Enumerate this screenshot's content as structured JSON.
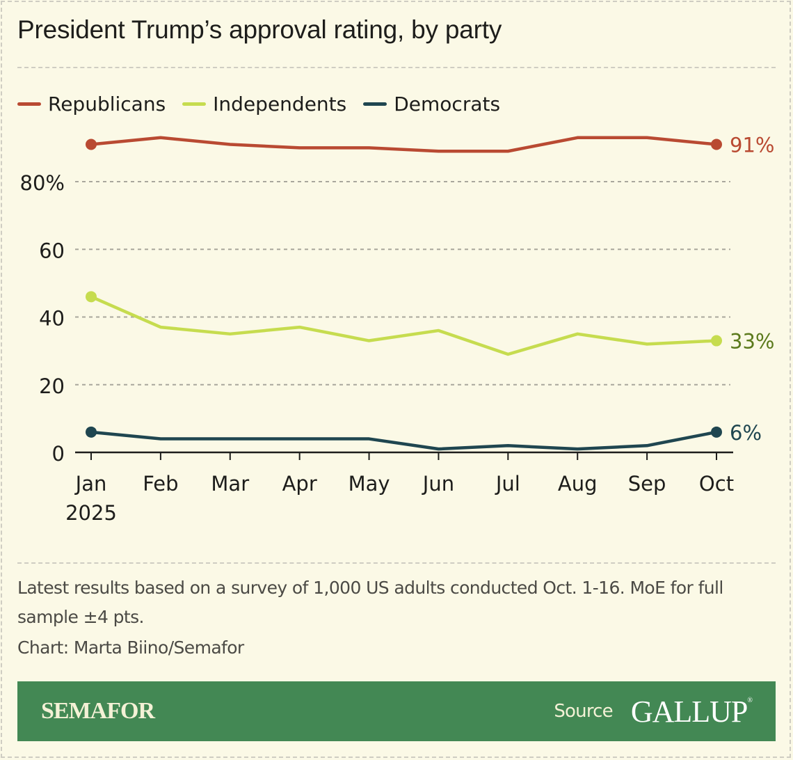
{
  "header": {
    "title": "President Trump’s approval rating, by party"
  },
  "legend": [
    {
      "label": "Republicans",
      "color": "#b94a32"
    },
    {
      "label": "Independents",
      "color": "#c6dc4f"
    },
    {
      "label": "Democrats",
      "color": "#1f4650"
    }
  ],
  "chart_data": {
    "type": "line",
    "title": "President Trump’s approval rating, by party",
    "xlabel": "",
    "ylabel": "",
    "categories": [
      "Jan",
      "Feb",
      "Mar",
      "Apr",
      "May",
      "Jun",
      "Jul",
      "Aug",
      "Sep",
      "Oct"
    ],
    "x_sublabel": {
      "Jan": "2025"
    },
    "ylim": [
      0,
      80
    ],
    "yticks": [
      0,
      20,
      40,
      60,
      80
    ],
    "ytick_labels": [
      "0",
      "20",
      "40",
      "60",
      "80%"
    ],
    "grid": true,
    "legend_position": "top-left",
    "series": [
      {
        "name": "Republicans",
        "color": "#b94a32",
        "label_color": "#b94a32",
        "end_label": "91%",
        "values": [
          91,
          93,
          91,
          90,
          90,
          89,
          89,
          93,
          93,
          91
        ]
      },
      {
        "name": "Independents",
        "color": "#c6dc4f",
        "label_color": "#5b7a1c",
        "end_label": "33%",
        "values": [
          46,
          37,
          35,
          37,
          33,
          36,
          29,
          35,
          32,
          33
        ]
      },
      {
        "name": "Democrats",
        "color": "#1f4650",
        "label_color": "#1f4650",
        "end_label": "6%",
        "values": [
          6,
          4,
          4,
          4,
          4,
          1,
          2,
          1,
          2,
          6
        ]
      }
    ]
  },
  "footer": {
    "note": "Latest results based on a survey of 1,000 US adults conducted Oct. 1-16. MoE for full sample ±4 pts.",
    "credit": "Chart: Marta Biino/Semafor",
    "brand": "SEMAFOR",
    "source_label": "Source",
    "source_name": "GALLUP",
    "source_mark": "®"
  }
}
